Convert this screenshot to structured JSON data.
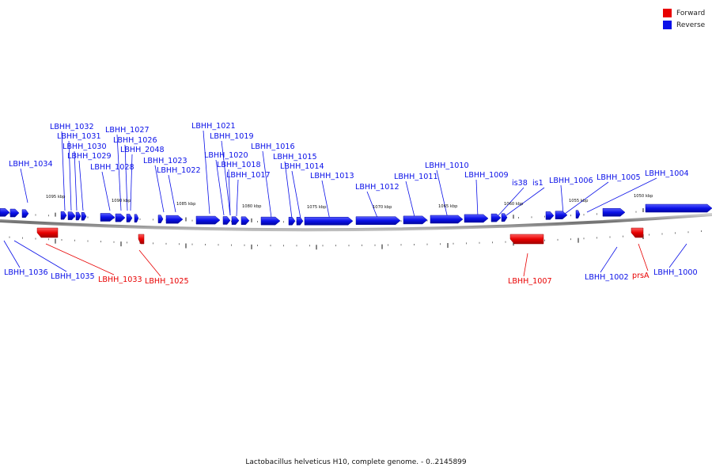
{
  "colors": {
    "forward": "#e80000",
    "reverse": "#0a10e8",
    "axis": "#777777"
  },
  "legend": [
    {
      "label": "Forward",
      "color": "#e80000"
    },
    {
      "label": "Reverse",
      "color": "#0a10e8"
    }
  ],
  "caption": "Lactobacillus helveticus H10, complete genome. - 0..2145899",
  "scale_ticks": [
    "1095 kbp",
    "1090 kbp",
    "1085 kbp",
    "1080 kbp",
    "1075 kbp",
    "1070 kbp",
    "1065 kbp",
    "1060 kbp",
    "1055 kbp",
    "1050 kbp"
  ],
  "genes_top": [
    "LBHH_1034",
    "LBHH_1032",
    "LBHH_1031",
    "LBHH_1030",
    "LBHH_1029",
    "LBHH_1028",
    "LBHH_1027",
    "LBHH_1026",
    "LBHH_2048",
    "LBHH_1023",
    "LBHH_1022",
    "LBHH_1021",
    "LBHH_1020",
    "LBHH_1019",
    "LBHH_1018",
    "LBHH_1017",
    "LBHH_1016",
    "LBHH_1015",
    "LBHH_1014",
    "LBHH_1013",
    "LBHH_1012",
    "LBHH_1011",
    "LBHH_1010",
    "LBHH_1009",
    "is38",
    "is1",
    "LBHH_1006",
    "LBHH_1005",
    "LBHH_1004"
  ],
  "genes_bottom": [
    {
      "label": "LBHH_1036",
      "strand": "reverse"
    },
    {
      "label": "LBHH_1035",
      "strand": "reverse"
    },
    {
      "label": "LBHH_1033",
      "strand": "forward"
    },
    {
      "label": "LBHH_1025",
      "strand": "forward"
    },
    {
      "label": "LBHH_1007",
      "strand": "forward"
    },
    {
      "label": "LBHH_1002",
      "strand": "reverse"
    },
    {
      "label": "prsA",
      "strand": "forward"
    },
    {
      "label": "LBHH_1000",
      "strand": "reverse"
    }
  ]
}
